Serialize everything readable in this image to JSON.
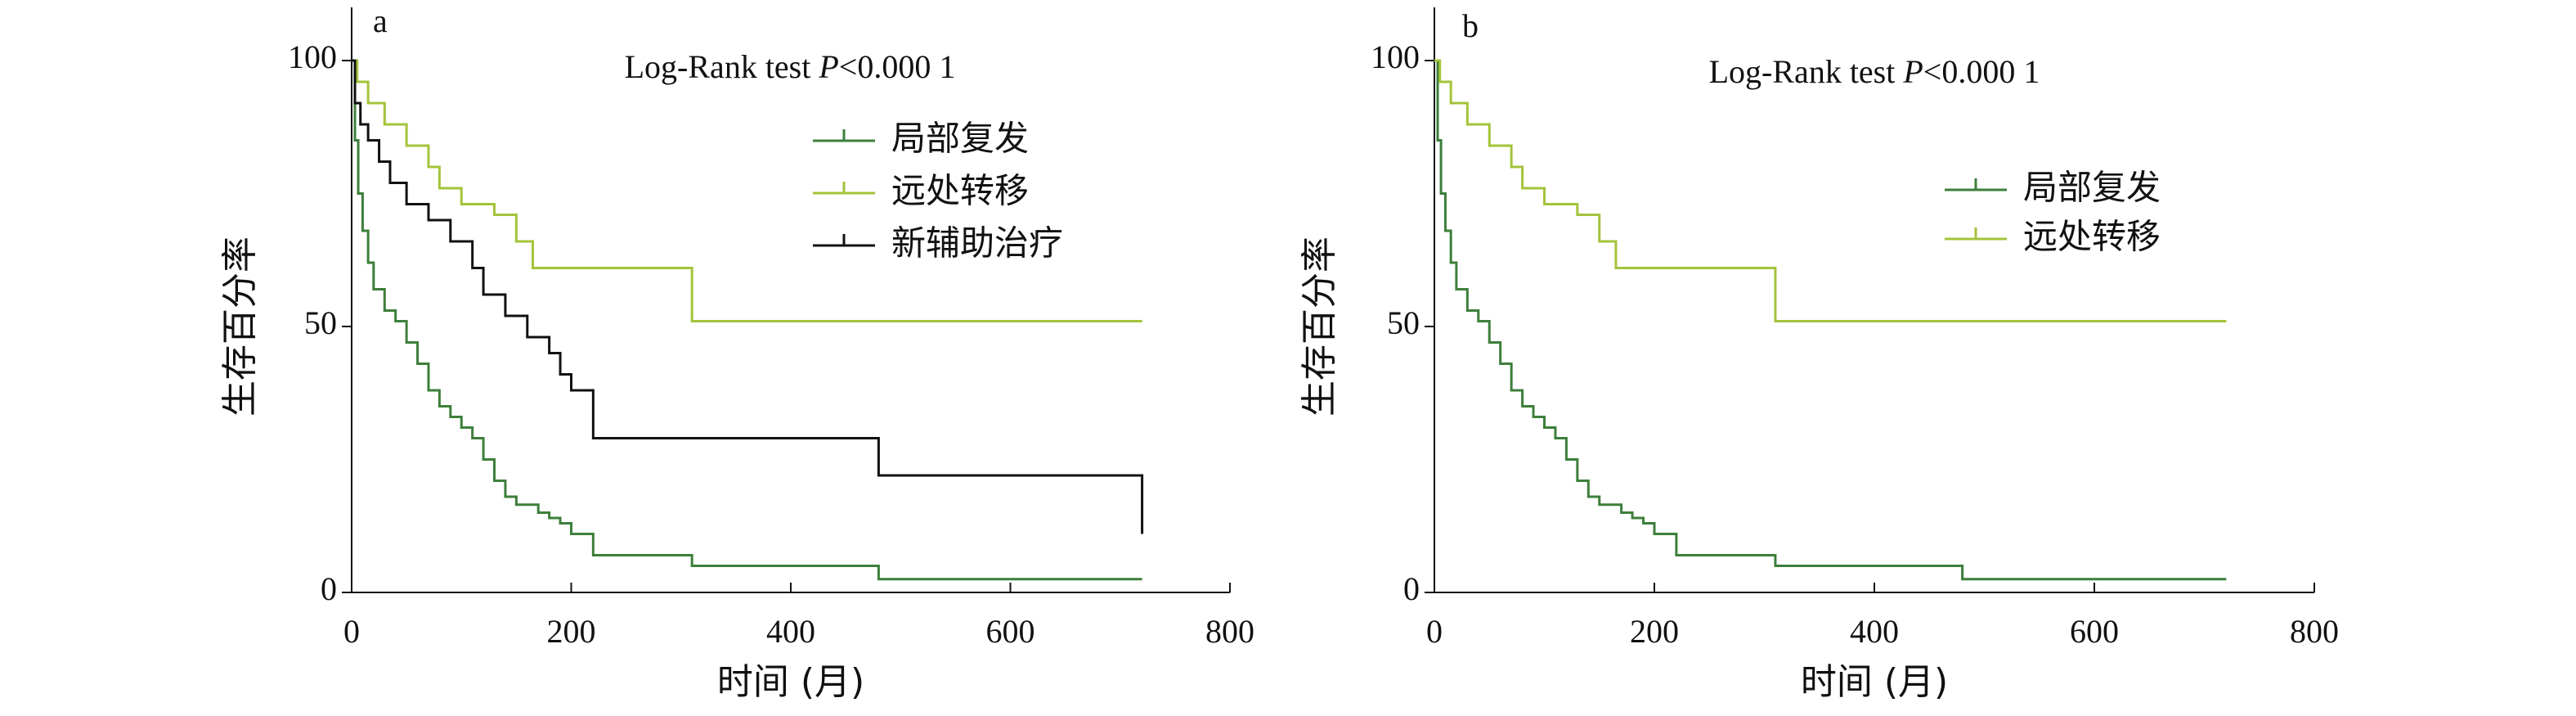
{
  "chart_data": [
    {
      "type": "step",
      "panel_label": "a",
      "annotation": [
        "Log-Rank test ",
        "P",
        "<0.000 1"
      ],
      "xlabel": "时间 (月)",
      "ylabel": "生存百分率",
      "xlim": [
        0,
        800
      ],
      "ylim": [
        0,
        110
      ],
      "xticks": [
        0,
        200,
        400,
        600,
        800
      ],
      "yticks": [
        0,
        50,
        100
      ],
      "series": [
        {
          "name": "局部复发",
          "color": "#3d7f3b",
          "x": [
            0,
            3,
            6,
            10,
            15,
            20,
            30,
            40,
            50,
            60,
            70,
            80,
            90,
            100,
            110,
            120,
            130,
            140,
            150,
            170,
            180,
            190,
            200,
            220,
            310,
            480,
            720
          ],
          "values": [
            100,
            85,
            75,
            68,
            62,
            57,
            53,
            51,
            47,
            43,
            38,
            35,
            33,
            31,
            29,
            25,
            21,
            18,
            16.5,
            15,
            14,
            13,
            11,
            7,
            5,
            2.5,
            2.5
          ]
        },
        {
          "name": "远处转移",
          "color": "#a3c43a",
          "x": [
            0,
            5,
            15,
            30,
            50,
            70,
            80,
            100,
            130,
            150,
            165,
            310,
            720
          ],
          "values": [
            100,
            96,
            92,
            88,
            84,
            80,
            76,
            73,
            71,
            66,
            61,
            51,
            51
          ]
        },
        {
          "name": "新辅助治疗",
          "color": "#111111",
          "x": [
            0,
            3,
            8,
            15,
            25,
            35,
            50,
            70,
            90,
            110,
            120,
            140,
            160,
            180,
            190,
            200,
            220,
            480,
            720,
            720
          ],
          "values": [
            100,
            92,
            88,
            85,
            81,
            77,
            73,
            70,
            66,
            61,
            56,
            52,
            48,
            45,
            41,
            38,
            29,
            22,
            22,
            11
          ]
        }
      ]
    },
    {
      "type": "step",
      "panel_label": "b",
      "annotation": [
        "Log-Rank test ",
        "P",
        "<0.000 1"
      ],
      "xlabel": "时间 (月)",
      "ylabel": "生存百分率",
      "xlim": [
        0,
        800
      ],
      "ylim": [
        0,
        110
      ],
      "xticks": [
        0,
        200,
        400,
        600,
        800
      ],
      "yticks": [
        0,
        50,
        100
      ],
      "series": [
        {
          "name": "局部复发",
          "color": "#3d7f3b",
          "x": [
            0,
            3,
            6,
            10,
            15,
            20,
            30,
            40,
            50,
            60,
            70,
            80,
            90,
            100,
            110,
            120,
            130,
            140,
            150,
            170,
            180,
            190,
            200,
            220,
            310,
            480,
            720
          ],
          "values": [
            100,
            85,
            75,
            68,
            62,
            57,
            53,
            51,
            47,
            43,
            38,
            35,
            33,
            31,
            29,
            25,
            21,
            18,
            16.5,
            15,
            14,
            13,
            11,
            7,
            5,
            2.5,
            2.5
          ]
        },
        {
          "name": "远处转移",
          "color": "#a3c43a",
          "x": [
            0,
            5,
            15,
            30,
            50,
            70,
            80,
            100,
            130,
            150,
            165,
            310,
            720
          ],
          "values": [
            100,
            96,
            92,
            88,
            84,
            80,
            76,
            73,
            71,
            66,
            61,
            51,
            51
          ]
        }
      ]
    }
  ]
}
